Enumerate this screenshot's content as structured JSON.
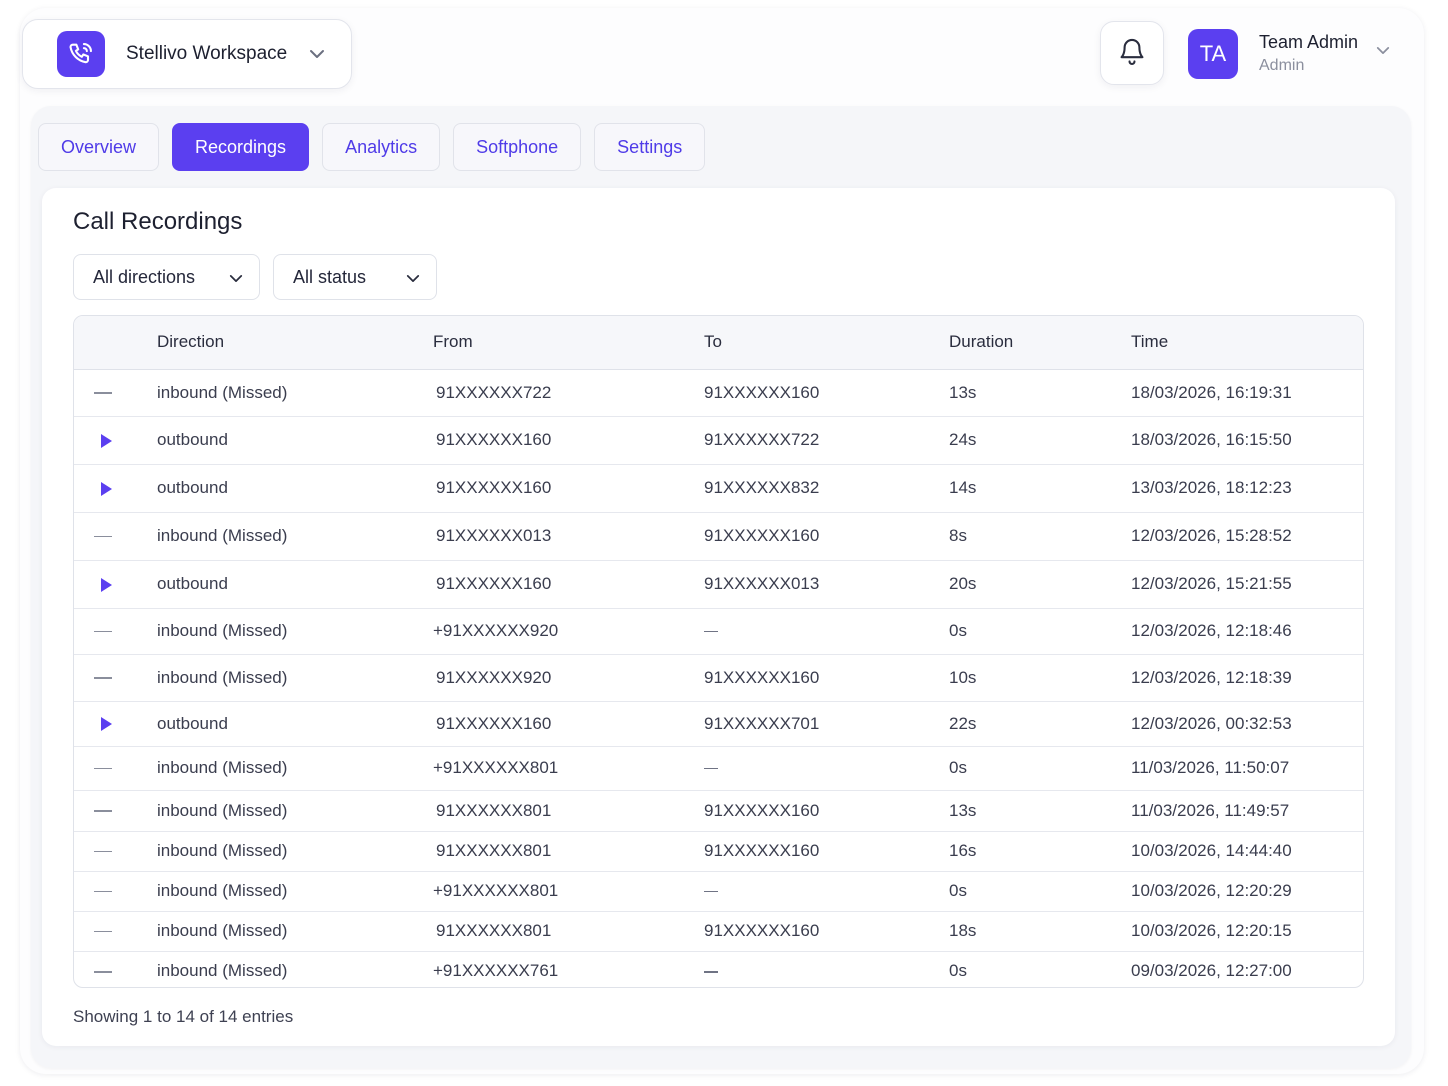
{
  "workspace": {
    "name": "Stellivo Workspace",
    "logo_icon": "phone-ringing-icon",
    "chevron_icon": "chevron-down-icon"
  },
  "header": {
    "notifications_icon": "bell-icon",
    "user": {
      "initials": "TA",
      "name": "Team Admin",
      "role": "Admin"
    }
  },
  "tabs": [
    {
      "label": "Overview",
      "active": false
    },
    {
      "label": "Recordings",
      "active": true
    },
    {
      "label": "Analytics",
      "active": false
    },
    {
      "label": "Softphone",
      "active": false
    },
    {
      "label": "Settings",
      "active": false
    }
  ],
  "card": {
    "title": "Call Recordings"
  },
  "filters": {
    "direction": "All directions",
    "status": "All status"
  },
  "table": {
    "columns": [
      "",
      "Direction",
      "From",
      "To",
      "Duration",
      "Time"
    ],
    "rows": [
      {
        "icon": "dash-icon",
        "direction": "inbound (Missed)",
        "from": "91XXXXXX722",
        "to": "91XXXXXX160",
        "duration": "13s",
        "time": "18/03/2026, 16:19:31"
      },
      {
        "icon": "play-icon",
        "direction": "outbound",
        "from": "91XXXXXX160",
        "to": "91XXXXXX722",
        "duration": "24s",
        "time": "18/03/2026, 16:15:50"
      },
      {
        "icon": "play-icon",
        "direction": "outbound",
        "from": "91XXXXXX160",
        "to": "91XXXXXX832",
        "duration": "14s",
        "time": "13/03/2026, 18:12:23"
      },
      {
        "icon": "dash-icon",
        "direction": "inbound (Missed)",
        "from": "91XXXXXX013",
        "to": "91XXXXXX160",
        "duration": "8s",
        "time": "12/03/2026, 15:28:52"
      },
      {
        "icon": "play-icon",
        "direction": "outbound",
        "from": "91XXXXXX160",
        "to": "91XXXXXX013",
        "duration": "20s",
        "time": "12/03/2026, 15:21:55"
      },
      {
        "icon": "dash-icon",
        "direction": "inbound (Missed)",
        "from": "+91XXXXXX920",
        "to": "—",
        "duration": "0s",
        "time": "12/03/2026, 12:18:46"
      },
      {
        "icon": "dash-icon",
        "direction": "inbound (Missed)",
        "from": "91XXXXXX920",
        "to": "91XXXXXX160",
        "duration": "10s",
        "time": "12/03/2026, 12:18:39"
      },
      {
        "icon": "play-icon",
        "direction": "outbound",
        "from": "91XXXXXX160",
        "to": "91XXXXXX701",
        "duration": "22s",
        "time": "12/03/2026, 00:32:53"
      },
      {
        "icon": "dash-icon",
        "direction": "inbound (Missed)",
        "from": "+91XXXXXX801",
        "to": "—",
        "duration": "0s",
        "time": "11/03/2026, 11:50:07"
      },
      {
        "icon": "dash-icon",
        "direction": "inbound (Missed)",
        "from": "91XXXXXX801",
        "to": "91XXXXXX160",
        "duration": "13s",
        "time": "11/03/2026, 11:49:57"
      },
      {
        "icon": "dash-icon",
        "direction": "inbound (Missed)",
        "from": "91XXXXXX801",
        "to": "91XXXXXX160",
        "duration": "16s",
        "time": "10/03/2026, 14:44:40"
      },
      {
        "icon": "dash-icon",
        "direction": "inbound (Missed)",
        "from": "+91XXXXXX801",
        "to": "—",
        "duration": "0s",
        "time": "10/03/2026, 12:20:29"
      },
      {
        "icon": "dash-icon",
        "direction": "inbound (Missed)",
        "from": "91XXXXXX801",
        "to": "91XXXXXX160",
        "duration": "18s",
        "time": "10/03/2026, 12:20:15"
      },
      {
        "icon": "dash-icon",
        "direction": "inbound (Missed)",
        "from": "+91XXXXXX761",
        "to": "—",
        "duration": "0s",
        "time": "09/03/2026, 12:27:00"
      }
    ]
  },
  "footer": {
    "text": "Showing 1 to 14 of 14 entries"
  },
  "colors": {
    "accent": "#5b3ff0",
    "tab_text": "#4f3be8",
    "panel_bg": "#f5f6f9"
  }
}
